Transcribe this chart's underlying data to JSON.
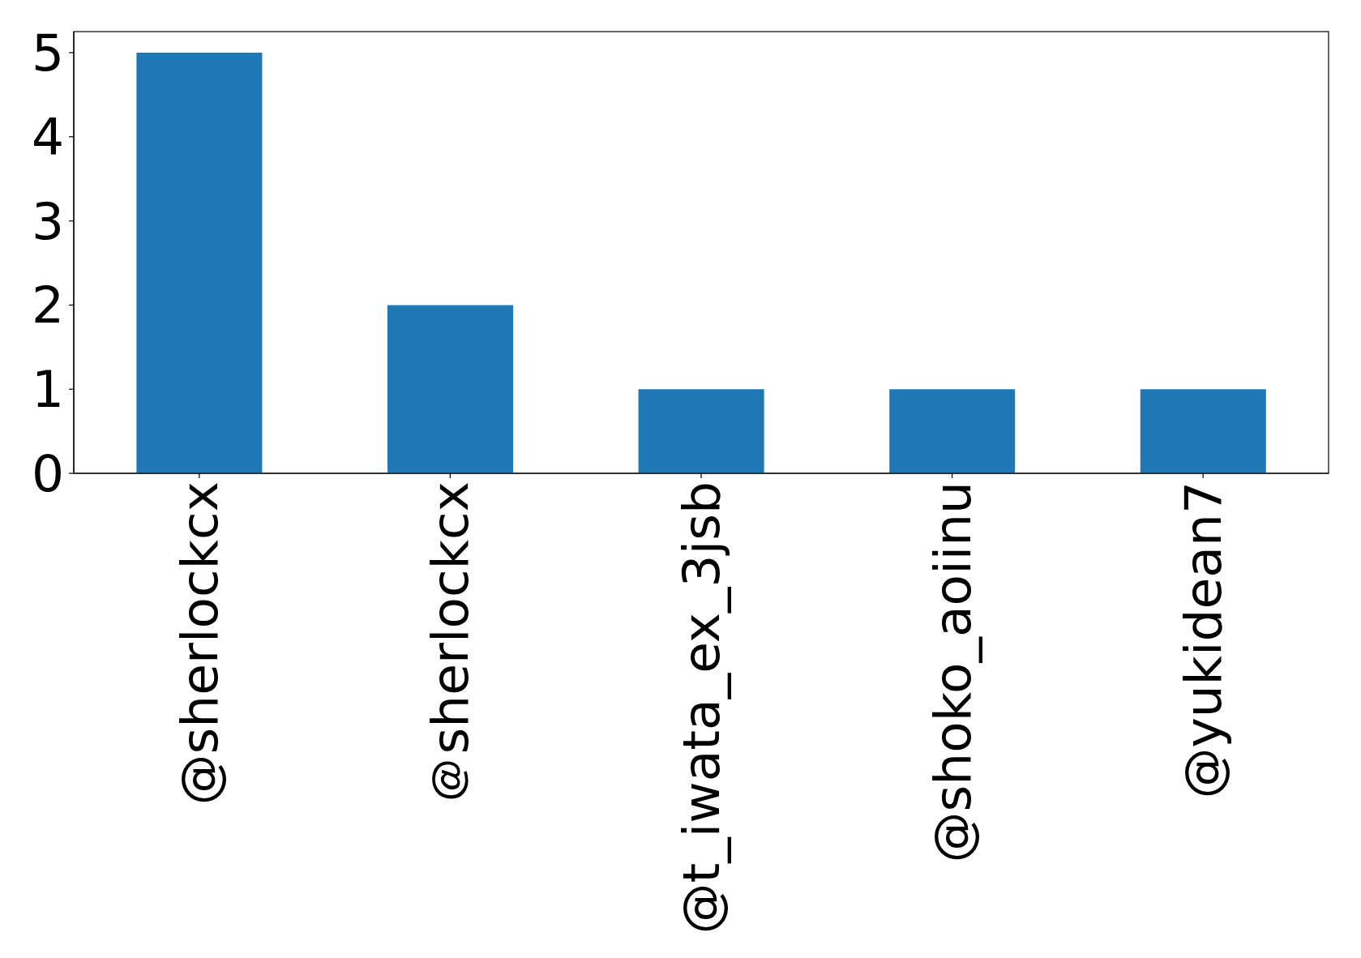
{
  "chart_data": {
    "type": "bar",
    "categories": [
      "@sherlockcx",
      "＠sherlockcx",
      "@t_iwata_ex_3jsb",
      "@shoko_aoiinu",
      "@yukidean7"
    ],
    "values": [
      5,
      2,
      1,
      1,
      1
    ],
    "color": "#1f77b4",
    "ylim": [
      0,
      5.25
    ],
    "yticks": [
      0,
      1,
      2,
      3,
      4,
      5
    ]
  }
}
